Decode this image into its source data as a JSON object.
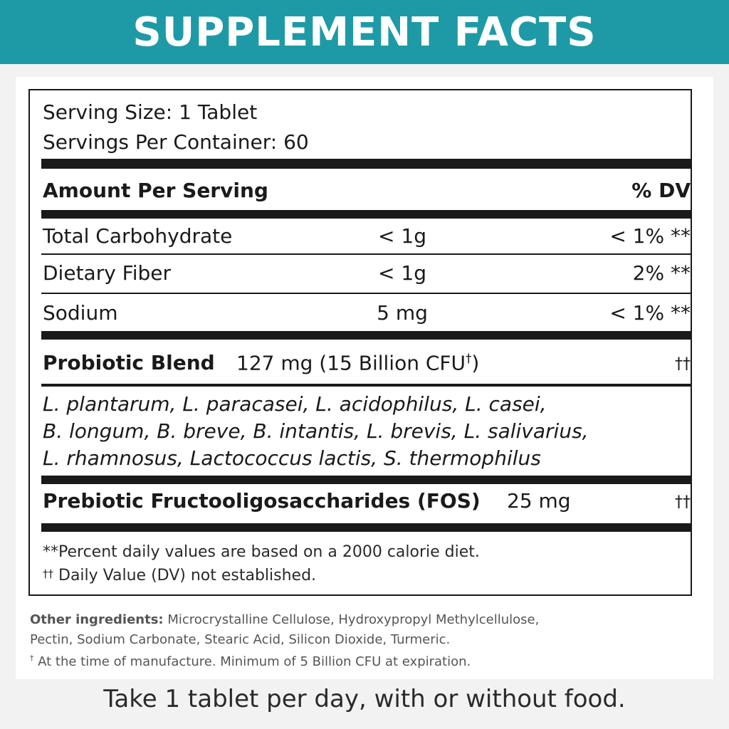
{
  "header": {
    "title": "SUPPLEMENT FACTS"
  },
  "serving": {
    "size": "Serving Size: 1 Tablet",
    "per_container": "Servings Per Container: 60"
  },
  "columns": {
    "amount_label": "Amount Per Serving",
    "dv_label": "% DV"
  },
  "nutrients": [
    {
      "name": "Total Carbohydrate",
      "amount": "< 1g",
      "dv": "< 1% **"
    },
    {
      "name": "Dietary Fiber",
      "amount": "< 1g",
      "dv": "2% **"
    },
    {
      "name": "Sodium",
      "amount": "5 mg",
      "dv": "< 1% **"
    }
  ],
  "probiotic": {
    "name": "Probiotic Blend",
    "amount": "127 mg (15 Billion CFU",
    "amount_sup": "†",
    "amount_end": ")",
    "dv": "††",
    "strains_line1": "L. plantarum, L. paracasei, L. acidophilus, L. casei,",
    "strains_line2": "B. longum, B. breve, B. intantis, L. brevis, L. salivarius,",
    "strains_line3": "L. rhamnosus, Lactococcus lactis, S. thermophilus"
  },
  "prebiotic": {
    "name": "Prebiotic Fructooligosaccharides (FOS)",
    "amount": "25 mg",
    "dv": "††"
  },
  "footnotes": {
    "line1": "**Percent daily values are based on a 2000 calorie diet.",
    "line2_mark": "††",
    "line2": "Daily Value (DV) not established."
  },
  "other_ingredients": {
    "label": "Other ingredients:",
    "line1": "Microcrystalline Cellulose, Hydroxypropyl Methylcellulose,",
    "line2": "Pectin, Sodium Carbonate, Stearic Acid, Silicon Dioxide, Turmeric.",
    "note_mark": "†",
    "note": "At the time of manufacture. Minimum of 5 Billion CFU at expiration."
  },
  "directions": "Take 1 tablet per day, with or without food."
}
